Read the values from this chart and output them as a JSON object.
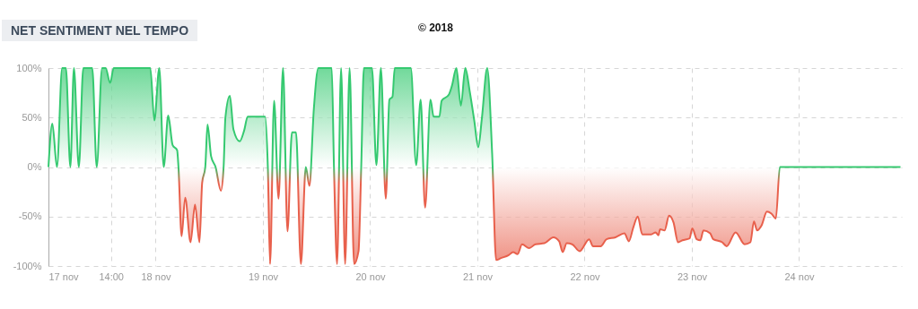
{
  "chart_data": {
    "type": "area",
    "title": "NET SENTIMENT NEL TEMPO",
    "annotations": [
      "© 2018"
    ],
    "x": [
      "--11-17T00:00",
      "--11-17T00:52",
      "--11-17T01:54",
      "--11-17T03:04",
      "--11-17T03:54",
      "--11-17T04:54",
      "--11-17T05:42",
      "--11-17T06:48",
      "--11-17T07:48",
      "--11-17T09:48",
      "--11-17T10:48",
      "--11-17T12:00",
      "--11-17T12:48",
      "--11-17T13:48",
      "--11-17T14:36",
      "--11-17T22:48",
      "--11-17T23:42",
      "--11-18T00:48",
      "--11-18T01:48",
      "--11-18T02:48",
      "--11-18T03:48",
      "--11-18T04:48",
      "--11-18T05:06",
      "--11-18T05:48",
      "--11-18T06:36",
      "--11-18T07:48",
      "--11-18T08:48",
      "--11-18T09:48",
      "--11-18T10:24",
      "--11-18T11:06",
      "--11-18T11:36",
      "--11-18T12:24",
      "--11-18T13:24",
      "--11-18T14:36",
      "--11-18T15:12",
      "--11-18T15:36",
      "--11-18T16:36",
      "--11-18T17:24",
      "--11-18T18:48",
      "--11-18T19:48",
      "--11-18T20:36",
      "--11-19T00:30",
      "--11-19T01:06",
      "--11-19T01:36",
      "--11-19T02:30",
      "--11-19T03:30",
      "--11-19T04:30",
      "--11-19T05:30",
      "--11-19T06:30",
      "--11-19T07:24",
      "--11-19T08:30",
      "--11-19T09:36",
      "--11-19T10:24",
      "--11-19T11:24",
      "--11-19T12:24",
      "--11-19T15:24",
      "--11-19T15:54",
      "--11-19T16:36",
      "--11-19T17:30",
      "--11-19T18:24",
      "--11-19T19:24",
      "--11-19T20:24",
      "--11-19T21:24",
      "--11-19T22:00",
      "--11-19T22:36",
      "--11-20T00:24",
      "--11-20T01:24",
      "--11-20T02:24",
      "--11-20T03:30",
      "--11-20T04:18",
      "--11-20T05:00",
      "--11-20T05:30",
      "--11-20T09:06",
      "--11-20T10:18",
      "--11-20T11:18",
      "--11-20T12:18",
      "--11-20T13:30",
      "--11-20T14:12",
      "--11-20T15:30",
      "--11-20T16:00",
      "--11-20T17:36",
      "--11-20T18:18",
      "--11-20T19:18",
      "--11-20T20:18",
      "--11-20T21:18",
      "--11-20T22:18",
      "--11-20T23:18",
      "--11-21T00:12",
      "--11-21T01:00",
      "--11-21T02:12",
      "--11-21T03:18",
      "--11-21T04:12",
      "--11-21T05:18",
      "--11-21T07:00",
      "--11-21T08:00",
      "--11-21T09:00",
      "--11-21T10:00",
      "--11-21T11:36",
      "--11-21T13:00",
      "--11-21T15:00",
      "--11-21T17:00",
      "--11-21T18:18",
      "--11-21T19:06",
      "--11-21T20:00",
      "--11-21T21:12",
      "--11-21T22:54",
      "--11-22T01:00",
      "--11-22T01:54",
      "--11-22T03:36",
      "--11-22T04:54",
      "--11-22T06:54",
      "--11-22T08:54",
      "--11-22T09:54",
      "--11-22T10:54",
      "--11-22T11:54",
      "--11-22T12:54",
      "--11-22T14:54",
      "--11-22T15:54",
      "--11-22T16:30",
      "--11-22T16:54",
      "--11-22T17:54",
      "--11-22T18:54",
      "--11-22T19:54",
      "--11-22T20:54",
      "--11-22T21:54",
      "--11-22T23:30",
      "--11-23T00:06",
      "--11-23T01:06",
      "--11-23T01:54",
      "--11-23T02:36",
      "--11-23T04:06",
      "--11-23T04:48",
      "--11-23T06:48",
      "--11-23T07:48",
      "--11-23T09:48",
      "--11-23T11:48",
      "--11-23T13:06",
      "--11-23T13:54",
      "--11-23T14:36",
      "--11-23T15:36",
      "--11-23T16:48",
      "--11-23T17:48",
      "--11-23T18:48",
      "--11-23T19:42",
      "--11-23T21:42",
      "--11-24T22:42"
    ],
    "series": [
      {
        "colors": [
          "#35c970",
          "#35c970",
          "#35c970",
          "#35c970",
          "#35c970",
          "#35c970",
          "#35c970",
          "#35c970",
          "#35c970",
          "#35c970",
          "#35c970",
          "#35c970",
          "#35c970",
          "#35c970",
          "#35c970",
          "#35c970",
          "#35c970",
          "#35c970",
          "#35c970",
          "#35c970",
          "#35c970",
          "#35c970",
          "#35c970",
          "#e8604c",
          "#e8604c",
          "#e8604c",
          "#e8604c",
          "#e8604c",
          "#e8604c",
          "#35c970",
          "#35c970",
          "#35c970",
          "#35c970",
          "#e8604c",
          "#35c970",
          "#35c970",
          "#35c970",
          "#35c970",
          "#35c970",
          "#35c970",
          "#35c970",
          "#35c970",
          "#35c970",
          "#e8604c",
          "#35c970",
          "#e8604c",
          "#35c970",
          "#e8604c",
          "#35c970",
          "#35c970",
          "#e8604c",
          "#35c970",
          "#e8604c",
          "#35c970",
          "#35c970",
          "#35c970",
          "#35c970",
          "#e8604c",
          "#35c970",
          "#e8604c",
          "#35c970",
          "#e8604c",
          "#e8604c",
          "#35c970",
          "#35c970",
          "#35c970",
          "#35c970",
          "#35c970",
          "#e8604c",
          "#35c970",
          "#35c970",
          "#35c970",
          "#35c970",
          "#35c970",
          "#35c970",
          "#e8604c",
          "#35c970",
          "#35c970",
          "#35c970",
          "#35c970",
          "#35c970",
          "#35c970",
          "#35c970",
          "#35c970",
          "#35c970",
          "#35c970",
          "#35c970",
          "#35c970",
          "#35c970",
          "#35c970",
          "#35c970",
          "#e8604c",
          "#e8604c",
          "#e8604c",
          "#e8604c",
          "#e8604c",
          "#e8604c",
          "#e8604c",
          "#e8604c",
          "#e8604c",
          "#e8604c",
          "#e8604c",
          "#e8604c",
          "#e8604c",
          "#e8604c",
          "#e8604c",
          "#e8604c",
          "#e8604c",
          "#e8604c",
          "#e8604c",
          "#e8604c",
          "#e8604c",
          "#e8604c",
          "#e8604c",
          "#e8604c",
          "#e8604c",
          "#e8604c",
          "#e8604c",
          "#e8604c",
          "#e8604c",
          "#e8604c",
          "#e8604c",
          "#e8604c",
          "#e8604c",
          "#e8604c",
          "#e8604c",
          "#e8604c",
          "#e8604c",
          "#e8604c",
          "#e8604c",
          "#e8604c",
          "#e8604c",
          "#e8604c",
          "#e8604c",
          "#e8604c",
          "#e8604c",
          "#e8604c",
          "#e8604c",
          "#e8604c",
          "#e8604c",
          "#e8604c",
          "#e8604c",
          "#e8604c",
          "#35c970",
          "#35c970",
          "#35c970"
        ],
        "values": [
          0,
          44,
          0,
          100,
          100,
          0,
          100,
          0,
          100,
          100,
          0,
          100,
          100,
          85,
          100,
          100,
          47,
          100,
          0,
          52,
          22,
          17,
          0,
          -70,
          -31,
          -76,
          -38,
          -76,
          -16,
          0,
          43,
          11,
          0,
          -24,
          0,
          50,
          72,
          38,
          26,
          37,
          51,
          51,
          0,
          -98,
          67,
          -32,
          100,
          -65,
          35,
          35,
          -98,
          0,
          -19,
          59,
          100,
          100,
          0,
          -98,
          100,
          -98,
          100,
          -98,
          -85,
          0,
          100,
          100,
          2,
          100,
          -32,
          68,
          71,
          100,
          100,
          2,
          68,
          -41,
          68,
          51,
          51,
          67,
          73,
          82,
          100,
          62,
          100,
          76,
          47,
          20,
          49,
          100,
          14,
          -94,
          -92,
          -89,
          -86,
          -88,
          -78,
          -82,
          -78,
          -77,
          -71,
          -75,
          -86,
          -77,
          -78,
          -85,
          -73,
          -80,
          -80,
          -73,
          -71,
          -67,
          -75,
          -61,
          -50,
          -68,
          -68,
          -66,
          -69,
          -63,
          -64,
          -49,
          -56,
          -76,
          -74,
          -72,
          -62,
          -73,
          -74,
          -64,
          -67,
          -73,
          -76,
          -80,
          -66,
          -78,
          -76,
          -55,
          -64,
          -59,
          -45,
          -47,
          -52,
          0,
          0,
          0
        ]
      }
    ],
    "xlim": [
      "--11-17T00:00",
      "--11-24T23:00"
    ],
    "xticks": [
      {
        "value": "--11-17",
        "label": "17 nov"
      },
      {
        "value": "--11-17T14:00",
        "label": "14:00"
      },
      {
        "value": "--11-18",
        "label": "18 nov"
      },
      {
        "value": "--11-19",
        "label": "19 nov"
      },
      {
        "value": "--11-20",
        "label": "20 nov"
      },
      {
        "value": "--11-21",
        "label": "21 nov"
      },
      {
        "value": "--11-22",
        "label": "22 nov"
      },
      {
        "value": "--11-23",
        "label": "23 nov"
      },
      {
        "value": "--11-24",
        "label": "24 nov"
      }
    ],
    "ylim": [
      -100,
      100
    ],
    "yticks": [
      {
        "value": -100,
        "label": "-100%"
      },
      {
        "value": -50,
        "label": "-50%"
      },
      {
        "value": 0,
        "label": "0%"
      },
      {
        "value": 50,
        "label": "50%"
      },
      {
        "value": 100,
        "label": "100%"
      }
    ],
    "grid": true,
    "line_style": "solid",
    "marker": "none",
    "legend": false
  }
}
